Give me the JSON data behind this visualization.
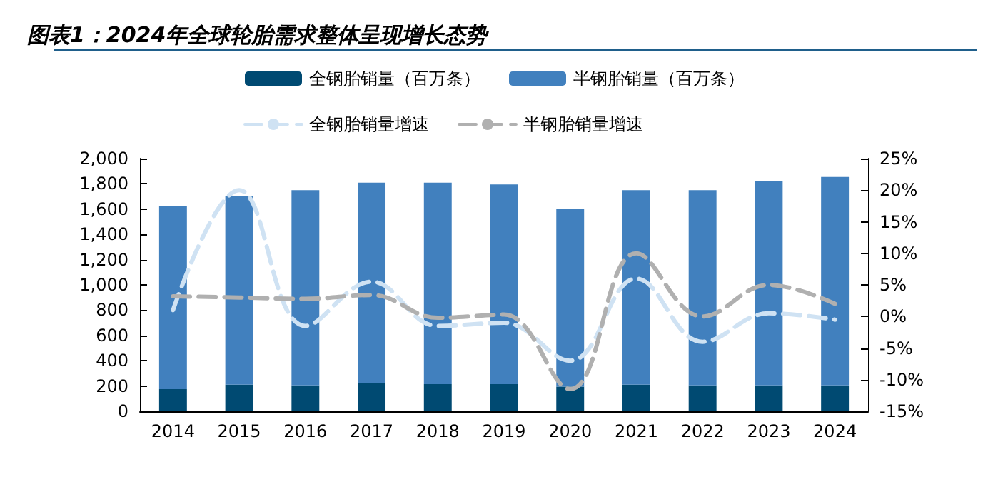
{
  "chart_data": {
    "type": "bar",
    "title": "图表1：2024年全球轮胎需求整体呈现增长态势",
    "categories": [
      "2014",
      "2015",
      "2016",
      "2017",
      "2018",
      "2019",
      "2020",
      "2021",
      "2022",
      "2023",
      "2024"
    ],
    "stacked": true,
    "series": [
      {
        "name": "全钢胎销量（百万条）",
        "color": "#004a72",
        "values": [
          175,
          210,
          205,
          220,
          215,
          215,
          195,
          210,
          205,
          205,
          205
        ]
      },
      {
        "name": "半钢胎销量（百万条）",
        "color": "#4180be",
        "values": [
          1450,
          1490,
          1545,
          1590,
          1595,
          1580,
          1405,
          1540,
          1545,
          1615,
          1650
        ]
      },
      {
        "name": "全钢胎销量增速",
        "type": "line",
        "axis": "y2",
        "color": "#cfe2f3",
        "line_style": "dashed",
        "values": [
          1,
          20,
          -1.5,
          5.5,
          -1.5,
          -1,
          -7,
          6,
          -4,
          0.5,
          -0.5
        ]
      },
      {
        "name": "半钢胎销量增速",
        "type": "line",
        "axis": "y2",
        "color": "#b0b0b0",
        "line_style": "dashed",
        "values": [
          3.2,
          3,
          2.8,
          3.4,
          -0.2,
          0.3,
          -11.5,
          10,
          0,
          5,
          2
        ]
      }
    ],
    "ylim": [
      0,
      2000
    ],
    "yticks": [
      {
        "value": 0,
        "label": "0"
      },
      {
        "value": 200,
        "label": "200"
      },
      {
        "value": 400,
        "label": "400"
      },
      {
        "value": 600,
        "label": "600"
      },
      {
        "value": 800,
        "label": "800"
      },
      {
        "value": 1000,
        "label": "1,000"
      },
      {
        "value": 1200,
        "label": "1,200"
      },
      {
        "value": 1400,
        "label": "1,400"
      },
      {
        "value": 1600,
        "label": "1,600"
      },
      {
        "value": 1800,
        "label": "1,800"
      },
      {
        "value": 2000,
        "label": "2,000"
      }
    ],
    "y2lim": [
      -15,
      25
    ],
    "y2ticks": [
      {
        "value": -15,
        "label": "-15%"
      },
      {
        "value": -10,
        "label": "-10%"
      },
      {
        "value": -5,
        "label": "-5%"
      },
      {
        "value": 0,
        "label": "0%"
      },
      {
        "value": 5,
        "label": "5%"
      },
      {
        "value": 10,
        "label": "10%"
      },
      {
        "value": 15,
        "label": "15%"
      },
      {
        "value": 20,
        "label": "20%"
      },
      {
        "value": 25,
        "label": "25%"
      }
    ],
    "grid": false,
    "legend": "top",
    "marker": "none"
  }
}
